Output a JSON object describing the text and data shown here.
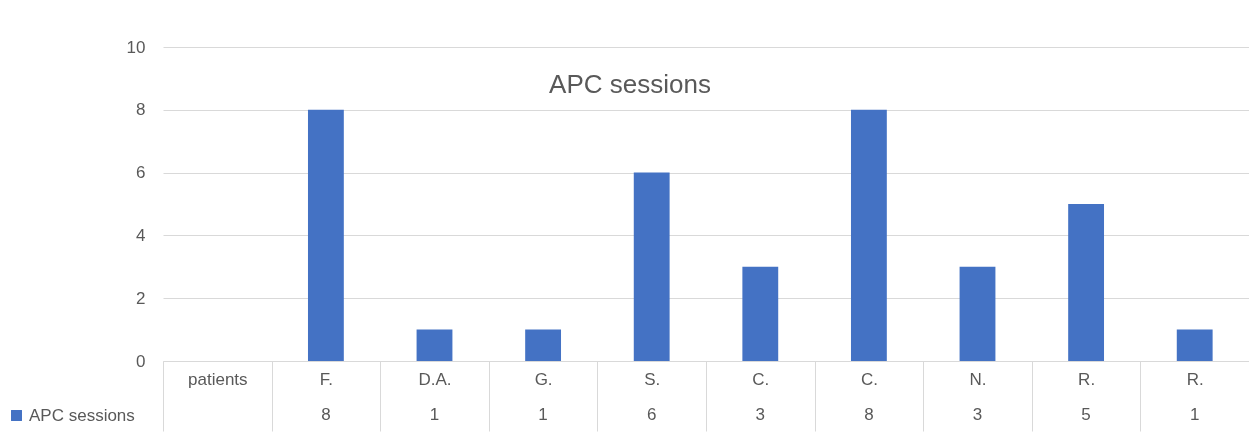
{
  "chart_data": {
    "type": "bar",
    "title": "APC sessions",
    "categories": [
      "patients",
      "F.",
      "D.A.",
      "G.",
      "S.",
      "C.",
      "C.",
      "N.",
      "R.",
      "R."
    ],
    "series": [
      {
        "name": "APC sessions",
        "color": "#4472c4",
        "values": [
          null,
          8,
          1,
          1,
          6,
          3,
          8,
          3,
          5,
          1
        ]
      }
    ],
    "ylim": [
      0,
      10
    ],
    "yticks": [
      0,
      2,
      4,
      6,
      8,
      10
    ],
    "grid": "y",
    "legend": "bottom left",
    "data_labels": true
  }
}
